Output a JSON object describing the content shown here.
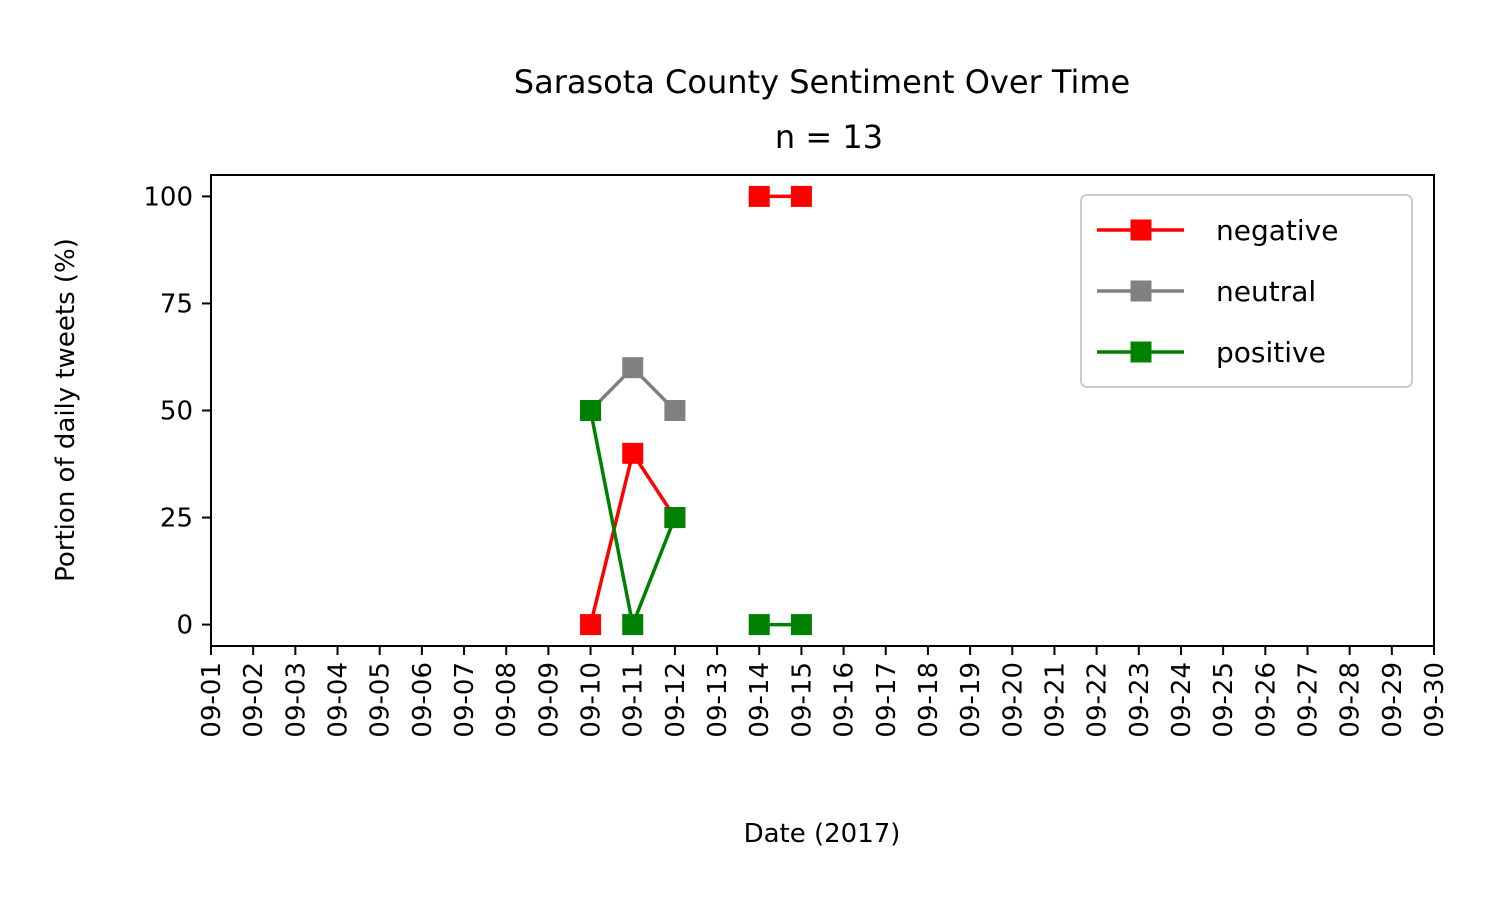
{
  "chart_data": {
    "type": "line",
    "title": "Sarasota County Sentiment Over Time",
    "subtitle": "n = 13",
    "xlabel": "Date (2017)",
    "ylabel": "Portion of daily tweets (%)",
    "x_ticks": [
      "09-01",
      "09-02",
      "09-03",
      "09-04",
      "09-05",
      "09-06",
      "09-07",
      "09-08",
      "09-09",
      "09-10",
      "09-11",
      "09-12",
      "09-13",
      "09-14",
      "09-15",
      "09-16",
      "09-17",
      "09-18",
      "09-19",
      "09-20",
      "09-21",
      "09-22",
      "09-23",
      "09-24",
      "09-25",
      "09-26",
      "09-27",
      "09-28",
      "09-29",
      "09-30"
    ],
    "y_ticks": [
      0,
      25,
      50,
      75,
      100
    ],
    "ylim": [
      -5,
      105
    ],
    "xlim": [
      "09-01",
      "09-30"
    ],
    "grid": false,
    "legend_position": "top-right",
    "marker": "square",
    "series": [
      {
        "name": "negative",
        "color": "#ff0000",
        "segments": [
          [
            {
              "x": "09-10",
              "y": 0
            },
            {
              "x": "09-11",
              "y": 40
            },
            {
              "x": "09-12",
              "y": 25
            }
          ],
          [
            {
              "x": "09-14",
              "y": 100
            },
            {
              "x": "09-15",
              "y": 100
            }
          ]
        ]
      },
      {
        "name": "neutral",
        "color": "#808080",
        "segments": [
          [
            {
              "x": "09-10",
              "y": 50
            },
            {
              "x": "09-11",
              "y": 60
            },
            {
              "x": "09-12",
              "y": 50
            }
          ]
        ]
      },
      {
        "name": "positive",
        "color": "#008000",
        "segments": [
          [
            {
              "x": "09-10",
              "y": 50
            },
            {
              "x": "09-11",
              "y": 0
            },
            {
              "x": "09-12",
              "y": 25
            }
          ],
          [
            {
              "x": "09-14",
              "y": 0
            },
            {
              "x": "09-15",
              "y": 0
            }
          ]
        ]
      }
    ]
  }
}
